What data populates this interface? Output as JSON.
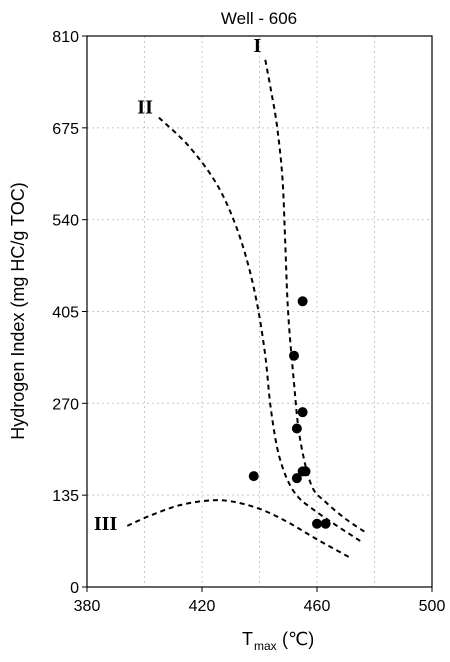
{
  "chart_data": {
    "type": "scatter",
    "title": "Well - 606",
    "xlabel_main": "T",
    "xlabel_sub": "max",
    "xlabel_unit": "(℃)",
    "ylabel": "Hydrogen Index (mg HC/g TOC)",
    "xlim": [
      380,
      500
    ],
    "ylim": [
      0,
      810
    ],
    "xticks": [
      380,
      420,
      460,
      500
    ],
    "yticks": [
      0,
      135,
      270,
      405,
      540,
      675,
      810
    ],
    "grid": true,
    "points": [
      {
        "x": 455,
        "y": 420
      },
      {
        "x": 452,
        "y": 340
      },
      {
        "x": 455,
        "y": 257
      },
      {
        "x": 453,
        "y": 233
      },
      {
        "x": 455,
        "y": 170
      },
      {
        "x": 456,
        "y": 170
      },
      {
        "x": 453,
        "y": 160
      },
      {
        "x": 438,
        "y": 163
      },
      {
        "x": 460,
        "y": 93
      },
      {
        "x": 463,
        "y": 93
      }
    ],
    "reference_curves": [
      {
        "label": "I",
        "points": [
          [
            442,
            775
          ],
          [
            444,
            730
          ],
          [
            446,
            680
          ],
          [
            448,
            600
          ],
          [
            449,
            500
          ],
          [
            450,
            400
          ],
          [
            452,
            300
          ],
          [
            454,
            220
          ],
          [
            458,
            150
          ],
          [
            463,
            125
          ],
          [
            470,
            100
          ],
          [
            477,
            80
          ]
        ]
      },
      {
        "label": "II",
        "points": [
          [
            405,
            690
          ],
          [
            415,
            650
          ],
          [
            424,
            600
          ],
          [
            430,
            550
          ],
          [
            435,
            490
          ],
          [
            439,
            420
          ],
          [
            442,
            340
          ],
          [
            444,
            260
          ],
          [
            447,
            190
          ],
          [
            452,
            140
          ],
          [
            460,
            110
          ],
          [
            476,
            65
          ]
        ]
      },
      {
        "label": "III",
        "points": [
          [
            394,
            90
          ],
          [
            402,
            105
          ],
          [
            412,
            120
          ],
          [
            422,
            127
          ],
          [
            430,
            126
          ],
          [
            440,
            115
          ],
          [
            450,
            95
          ],
          [
            460,
            70
          ],
          [
            472,
            42
          ]
        ]
      }
    ]
  }
}
